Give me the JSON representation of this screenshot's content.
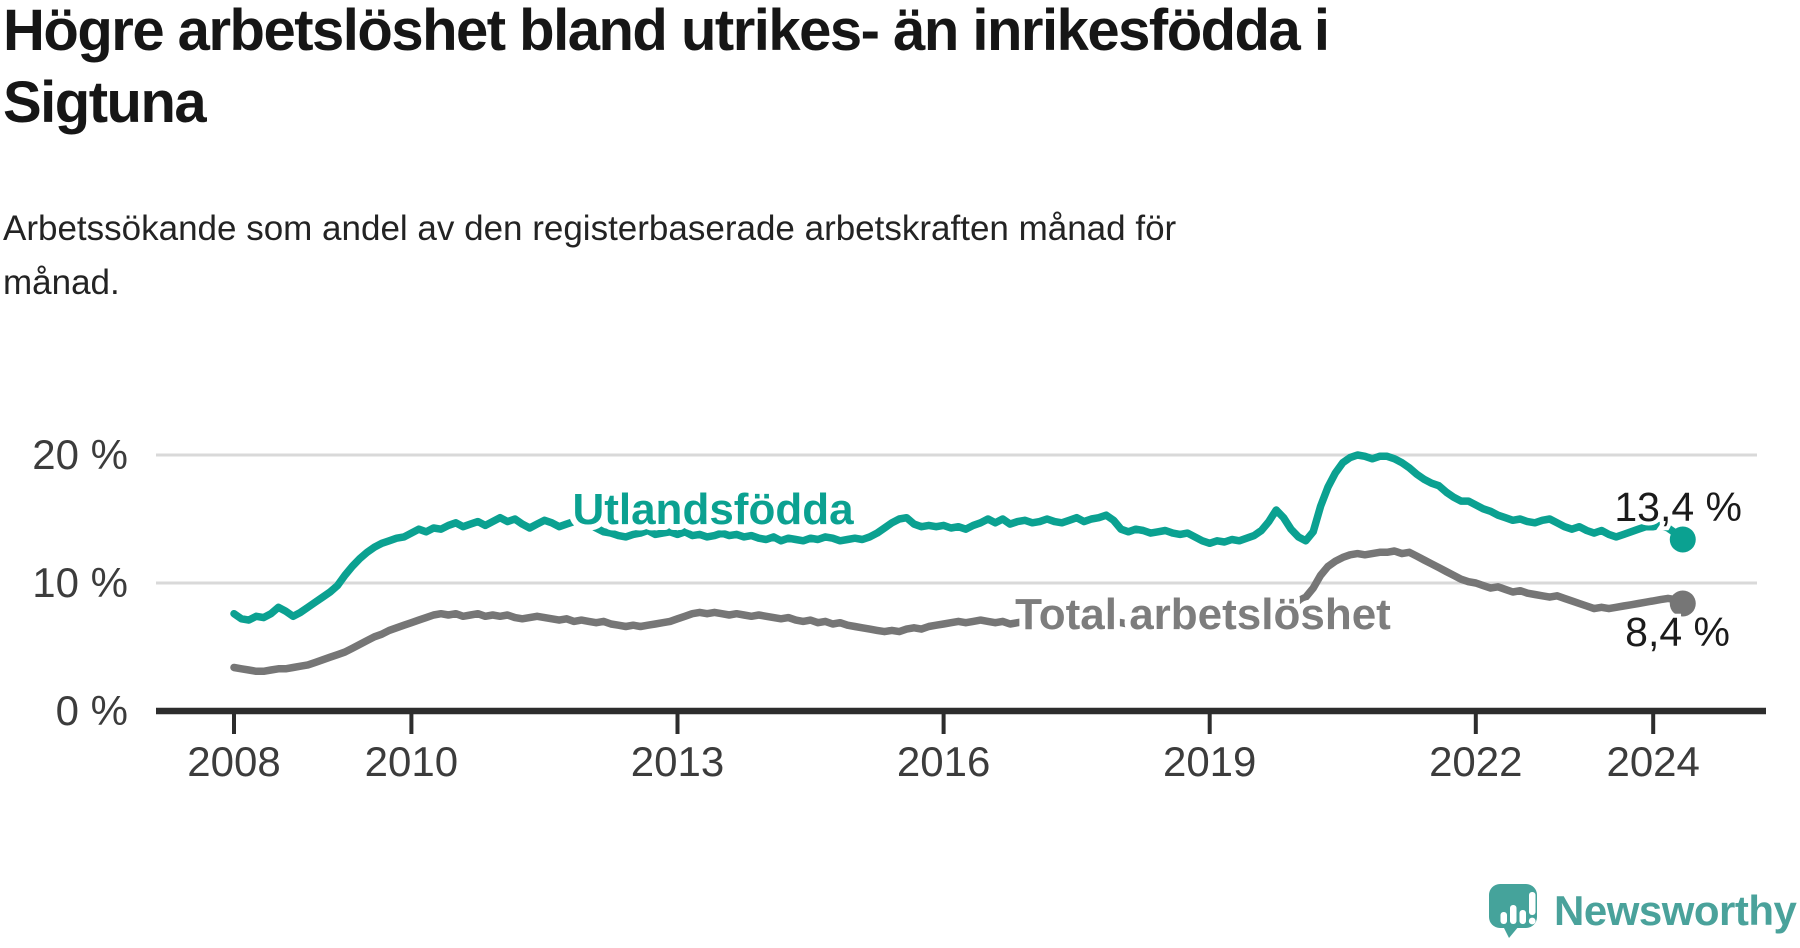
{
  "title": "Högre arbetslöshet bland utrikes- än inrikesfödda i\nSigtuna",
  "subtitle": "Arbetssökande som andel av den registerbaserade arbetskraften månad för\nmånad.",
  "branding": {
    "logo_text": "Newsworthy",
    "logo_color": "#4AA29B",
    "logo_icon": "bar-chart-speech-bubble-icon"
  },
  "chart_data": {
    "type": "line",
    "unit": "percent",
    "grid": "horizontal-only",
    "ylim": [
      0,
      21.6
    ],
    "x_range": {
      "start_year": 2008,
      "start_month": 1,
      "end_year": 2024,
      "end_month": 5,
      "interval": "monthly"
    },
    "x_ticks": [
      2008,
      2010,
      2013,
      2016,
      2019,
      2022,
      2024
    ],
    "y_ticks": [
      {
        "value": 20,
        "label": "20 %"
      },
      {
        "value": 10,
        "label": "10 %"
      },
      {
        "value": 0,
        "label": "0 %"
      }
    ],
    "end_label_color": "#1b1b1b",
    "series": [
      {
        "name": "Utlandsfödda",
        "color": "#0BA191",
        "label_color": "#0BA191",
        "end_value": 13.4,
        "end_label": "13,4 %",
        "values": [
          7.6,
          7.2,
          7.1,
          7.4,
          7.3,
          7.6,
          8.1,
          7.8,
          7.4,
          7.7,
          8.1,
          8.5,
          8.9,
          9.3,
          9.8,
          10.6,
          11.3,
          11.9,
          12.4,
          12.8,
          13.1,
          13.3,
          13.5,
          13.6,
          13.9,
          14.2,
          14.0,
          14.3,
          14.2,
          14.5,
          14.7,
          14.4,
          14.6,
          14.8,
          14.5,
          14.8,
          15.1,
          14.8,
          15.0,
          14.6,
          14.3,
          14.6,
          14.9,
          14.7,
          14.4,
          14.6,
          14.8,
          15.0,
          14.6,
          14.3,
          14.0,
          13.9,
          13.7,
          13.6,
          13.8,
          13.9,
          14.1,
          13.8,
          13.9,
          14.0,
          13.8,
          14.0,
          13.7,
          13.8,
          13.6,
          13.7,
          13.9,
          13.7,
          13.8,
          13.6,
          13.7,
          13.5,
          13.4,
          13.6,
          13.3,
          13.5,
          13.4,
          13.3,
          13.5,
          13.4,
          13.6,
          13.5,
          13.3,
          13.4,
          13.5,
          13.4,
          13.6,
          13.9,
          14.3,
          14.7,
          15.0,
          15.1,
          14.6,
          14.4,
          14.5,
          14.4,
          14.5,
          14.3,
          14.4,
          14.2,
          14.5,
          14.7,
          15.0,
          14.7,
          15.0,
          14.6,
          14.8,
          14.9,
          14.7,
          14.8,
          15.0,
          14.8,
          14.7,
          14.9,
          15.1,
          14.8,
          15.0,
          15.1,
          15.3,
          14.9,
          14.2,
          14.0,
          14.2,
          14.1,
          13.9,
          14.0,
          14.1,
          13.9,
          13.8,
          13.9,
          13.6,
          13.3,
          13.1,
          13.3,
          13.2,
          13.4,
          13.3,
          13.5,
          13.7,
          14.1,
          14.8,
          15.7,
          15.1,
          14.2,
          13.6,
          13.3,
          14.0,
          16.0,
          17.5,
          18.6,
          19.4,
          19.8,
          20.0,
          19.9,
          19.7,
          19.9,
          19.9,
          19.7,
          19.4,
          19.0,
          18.5,
          18.1,
          17.8,
          17.6,
          17.1,
          16.7,
          16.4,
          16.4,
          16.1,
          15.8,
          15.6,
          15.3,
          15.1,
          14.9,
          15.0,
          14.8,
          14.7,
          14.9,
          15.0,
          14.7,
          14.4,
          14.2,
          14.4,
          14.1,
          13.9,
          14.1,
          13.8,
          13.6,
          13.8,
          14.0,
          14.2,
          14.4,
          14.4,
          14.5,
          14.3,
          13.9,
          13.4
        ]
      },
      {
        "name": "Total arbetslöshet",
        "color": "#767676",
        "label_color": "#7D7D7D",
        "end_value": 8.4,
        "end_label": "8,4 %",
        "values": [
          3.4,
          3.3,
          3.2,
          3.1,
          3.1,
          3.2,
          3.3,
          3.3,
          3.4,
          3.5,
          3.6,
          3.8,
          4.0,
          4.2,
          4.4,
          4.6,
          4.9,
          5.2,
          5.5,
          5.8,
          6.0,
          6.3,
          6.5,
          6.7,
          6.9,
          7.1,
          7.3,
          7.5,
          7.6,
          7.5,
          7.6,
          7.4,
          7.5,
          7.6,
          7.4,
          7.5,
          7.4,
          7.5,
          7.3,
          7.2,
          7.3,
          7.4,
          7.3,
          7.2,
          7.1,
          7.2,
          7.0,
          7.1,
          7.0,
          6.9,
          7.0,
          6.8,
          6.7,
          6.6,
          6.7,
          6.6,
          6.7,
          6.8,
          6.9,
          7.0,
          7.2,
          7.4,
          7.6,
          7.7,
          7.6,
          7.7,
          7.6,
          7.5,
          7.6,
          7.5,
          7.4,
          7.5,
          7.4,
          7.3,
          7.2,
          7.3,
          7.1,
          7.0,
          7.1,
          6.9,
          7.0,
          6.8,
          6.9,
          6.7,
          6.6,
          6.5,
          6.4,
          6.3,
          6.2,
          6.3,
          6.2,
          6.4,
          6.5,
          6.4,
          6.6,
          6.7,
          6.8,
          6.9,
          7.0,
          6.9,
          7.0,
          7.1,
          7.0,
          6.9,
          7.0,
          6.8,
          6.9,
          7.0,
          6.9,
          7.0,
          7.1,
          7.0,
          7.1,
          7.2,
          7.1,
          7.0,
          7.1,
          7.0,
          6.9,
          7.0,
          6.9,
          6.8,
          6.9,
          6.8,
          6.7,
          6.8,
          6.9,
          6.8,
          6.7,
          6.8,
          6.9,
          7.0,
          7.1,
          7.2,
          7.3,
          7.4,
          7.5,
          7.6,
          7.8,
          7.9,
          8.0,
          8.1,
          8.2,
          8.4,
          8.6,
          8.9,
          9.6,
          10.6,
          11.3,
          11.7,
          12.0,
          12.2,
          12.3,
          12.2,
          12.3,
          12.4,
          12.4,
          12.5,
          12.3,
          12.4,
          12.1,
          11.8,
          11.5,
          11.2,
          10.9,
          10.6,
          10.3,
          10.1,
          10.0,
          9.8,
          9.6,
          9.7,
          9.5,
          9.3,
          9.4,
          9.2,
          9.1,
          9.0,
          8.9,
          9.0,
          8.8,
          8.6,
          8.4,
          8.2,
          8.0,
          8.1,
          8.0,
          8.1,
          8.2,
          8.3,
          8.4,
          8.5,
          8.6,
          8.7,
          8.8,
          8.7,
          8.4
        ]
      }
    ]
  }
}
